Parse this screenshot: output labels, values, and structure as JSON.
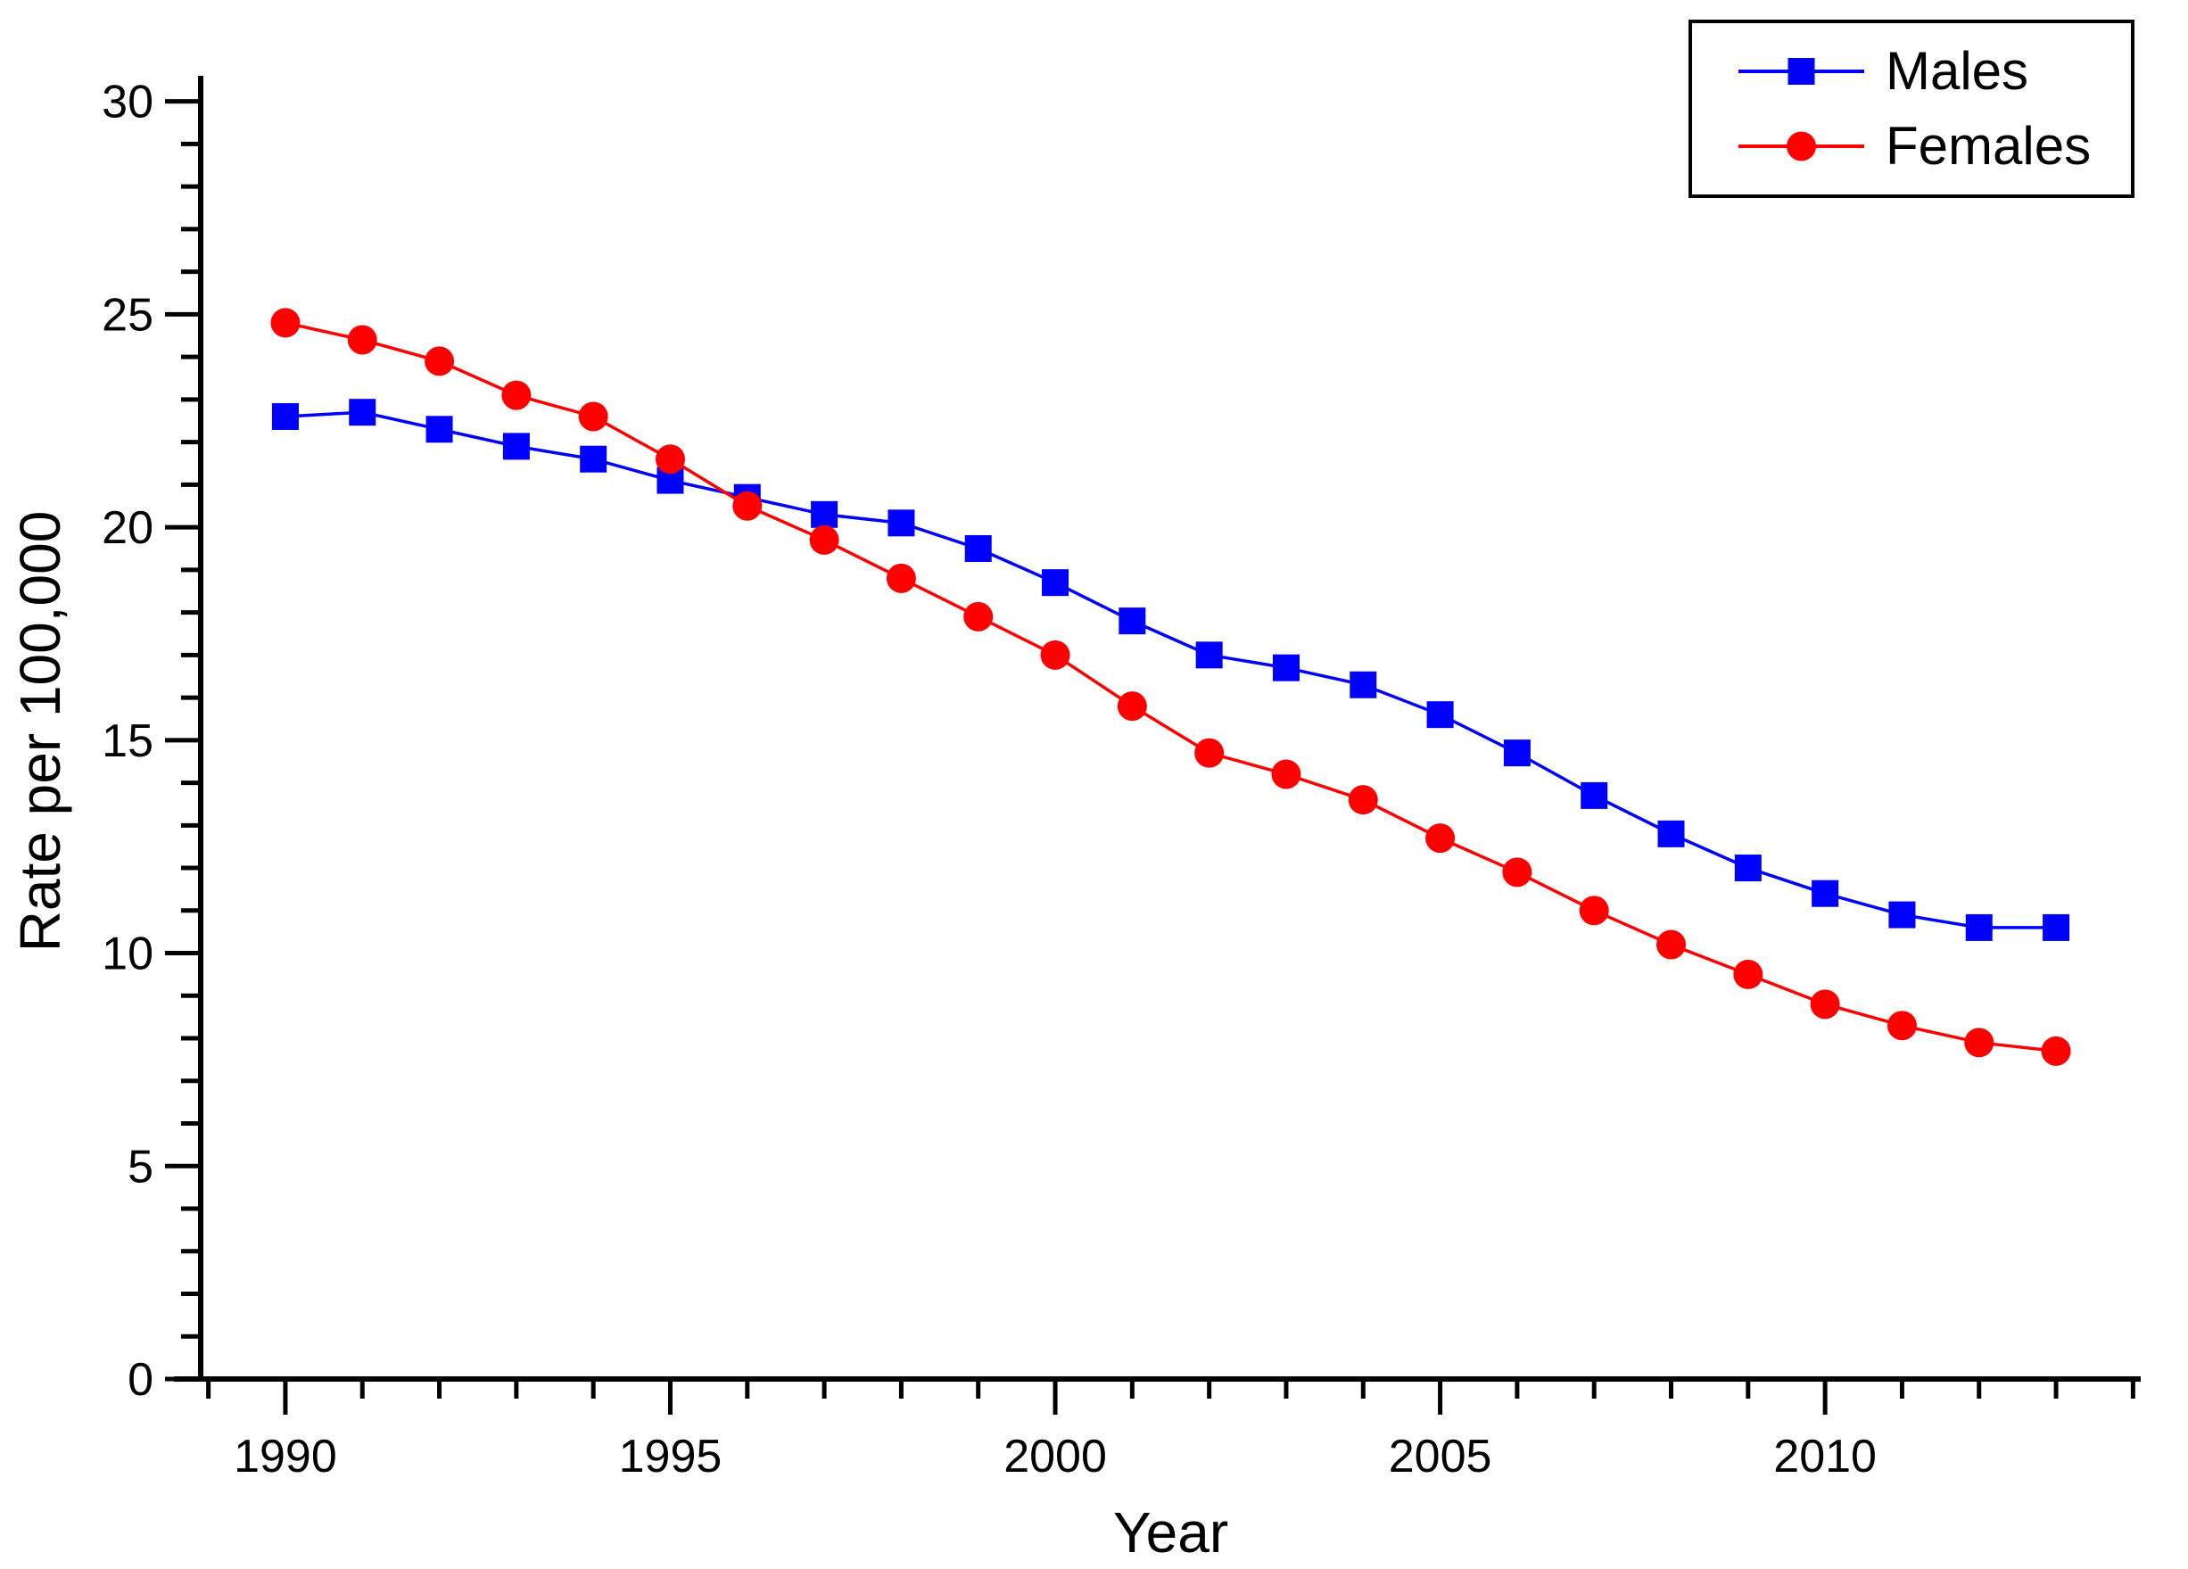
{
  "chart_data": {
    "type": "line",
    "title": "",
    "xlabel": "Year",
    "ylabel": "Rate per 100,000",
    "x": [
      1990,
      1991,
      1992,
      1993,
      1994,
      1995,
      1996,
      1997,
      1998,
      1999,
      2000,
      2001,
      2002,
      2003,
      2004,
      2005,
      2006,
      2007,
      2008,
      2009,
      2010,
      2011,
      2012,
      2013
    ],
    "series": [
      {
        "name": "Males",
        "color": "#0000FF",
        "marker": "square",
        "values": [
          22.6,
          22.7,
          22.3,
          21.9,
          21.6,
          21.1,
          20.7,
          20.3,
          20.1,
          19.5,
          18.7,
          17.8,
          17.0,
          16.7,
          16.3,
          15.6,
          14.7,
          13.7,
          12.8,
          12.0,
          11.4,
          10.9,
          10.6,
          10.6
        ]
      },
      {
        "name": "Females",
        "color": "#FF0000",
        "marker": "circle",
        "values": [
          24.8,
          24.4,
          23.9,
          23.1,
          22.6,
          21.6,
          20.5,
          19.7,
          18.8,
          17.9,
          17.0,
          15.8,
          14.7,
          14.2,
          13.6,
          12.7,
          11.9,
          11.0,
          10.2,
          9.5,
          8.8,
          8.3,
          7.9,
          7.7
        ]
      }
    ],
    "xlim": [
      1988.9,
      2014.1
    ],
    "ylim": [
      0,
      30.6
    ],
    "x_major_ticks": [
      1990,
      1995,
      2000,
      2005,
      2010
    ],
    "x_minor_tick_step": 1,
    "y_major_ticks": [
      0,
      5,
      10,
      15,
      20,
      25,
      30
    ],
    "y_minor_tick_step": 1,
    "grid": false,
    "legend_position": "top-right",
    "axis_color": "#000000",
    "background_color": "#FFFFFF"
  }
}
